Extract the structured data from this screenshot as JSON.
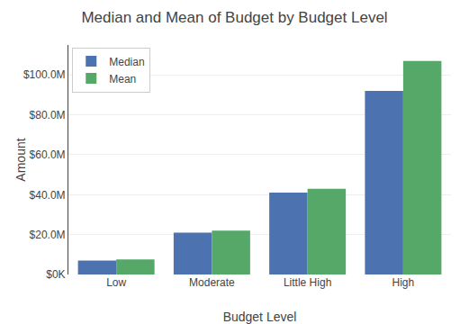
{
  "chart_data": {
    "type": "bar",
    "title": "Median and Mean of Budget by Budget Level",
    "xlabel": "Budget Level",
    "ylabel": "Amount",
    "categories": [
      "Low",
      "Moderate",
      "Little High",
      "High"
    ],
    "series": [
      {
        "name": "Median",
        "color": "#4c72b0",
        "values": [
          7000000,
          21000000,
          41000000,
          92000000
        ]
      },
      {
        "name": "Mean",
        "color": "#55a868",
        "values": [
          7500000,
          22000000,
          43000000,
          107000000
        ]
      }
    ],
    "ylim": [
      0,
      115000000
    ],
    "yticks": [
      {
        "value": 0,
        "label": "$0K"
      },
      {
        "value": 20000000,
        "label": "$20.0M"
      },
      {
        "value": 40000000,
        "label": "$40.0M"
      },
      {
        "value": 60000000,
        "label": "$60.0M"
      },
      {
        "value": 80000000,
        "label": "$80.0M"
      },
      {
        "value": 100000000,
        "label": "$100.0M"
      }
    ],
    "grid": true,
    "legend": "upper left"
  }
}
